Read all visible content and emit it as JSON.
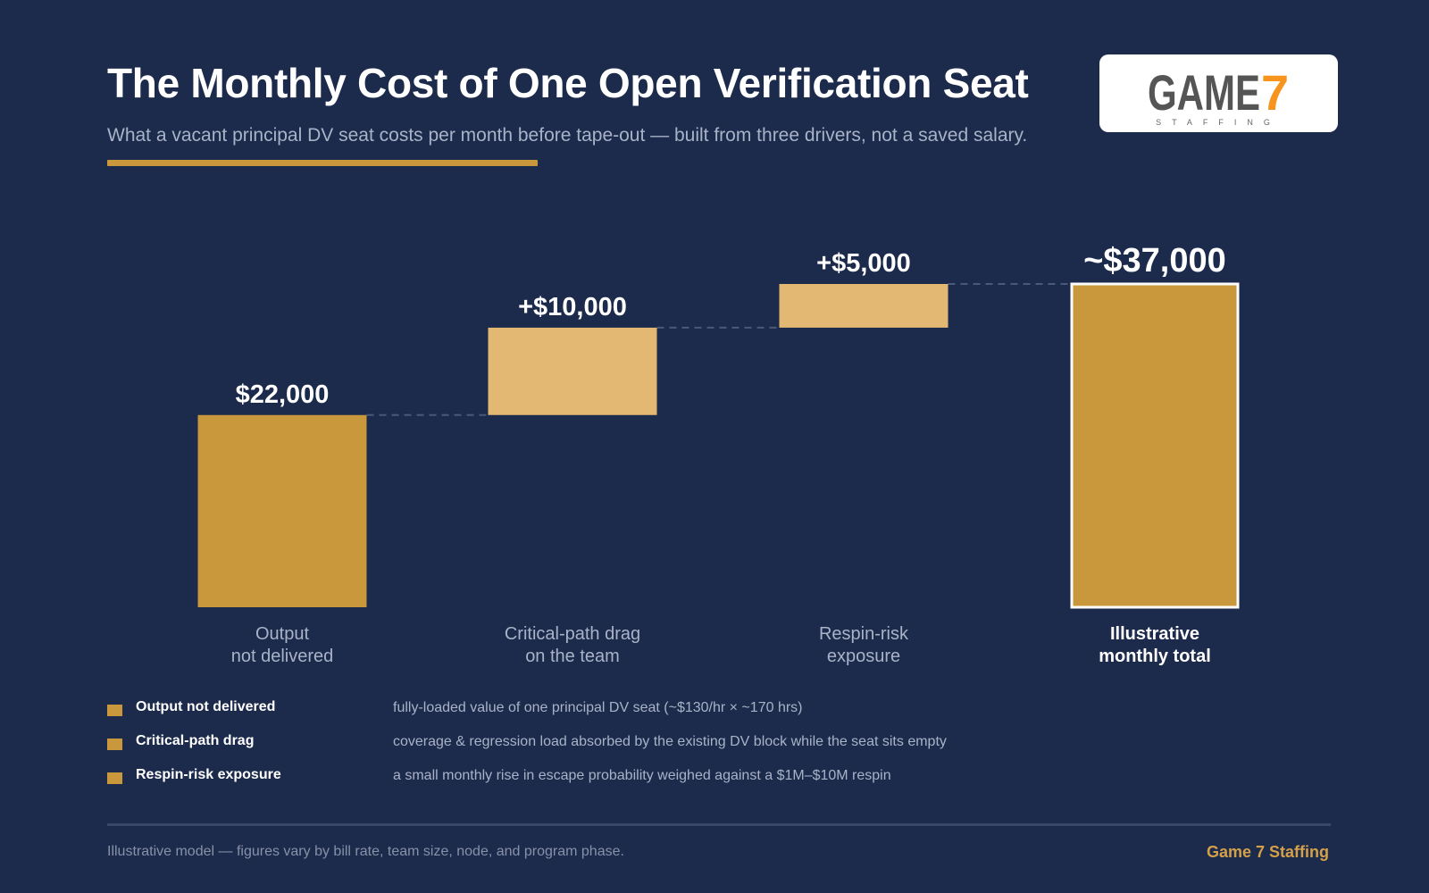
{
  "header": {
    "title": "The Monthly Cost of One Open Verification Seat",
    "subtitle": "What a vacant principal DV seat costs per month before tape-out — built from three drivers, not a saved salary."
  },
  "logo": {
    "word": "GAME",
    "digit": "7",
    "tagline": "STAFFING",
    "icon": "game7-staffing-logo"
  },
  "chart_data": {
    "type": "waterfall",
    "categories": [
      "Output\nnot delivered",
      "Critical-path drag\non the team",
      "Respin-risk\nexposure",
      "Illustrative\nmonthly total"
    ],
    "steps": [
      {
        "label": "$22,000",
        "value": 22000,
        "kind": "base"
      },
      {
        "label": "+$10,000",
        "value": 10000,
        "kind": "increment"
      },
      {
        "label": "+$5,000",
        "value": 5000,
        "kind": "increment"
      },
      {
        "label": "~$37,000",
        "value": 37000,
        "kind": "total"
      }
    ],
    "ylim": [
      0,
      37000
    ],
    "grid": false,
    "colors": {
      "base": "#c9973c",
      "increment": "#e2b873",
      "total": "#c9973c",
      "total_border": "#ffffff",
      "connector": "#4a587a"
    }
  },
  "legend": [
    {
      "name": "Output not delivered",
      "desc": "fully-loaded value of one principal DV seat (~$130/hr × ~170 hrs)"
    },
    {
      "name": "Critical-path drag",
      "desc": "coverage & regression load absorbed by the existing DV block while the seat sits empty"
    },
    {
      "name": "Respin-risk exposure",
      "desc": "a small monthly rise in escape probability weighed against a $1M–$10M respin"
    }
  ],
  "footer": {
    "note": "Illustrative model — figures vary by bill rate, team size, node, and program phase.",
    "brand": "Game 7 Staffing"
  }
}
